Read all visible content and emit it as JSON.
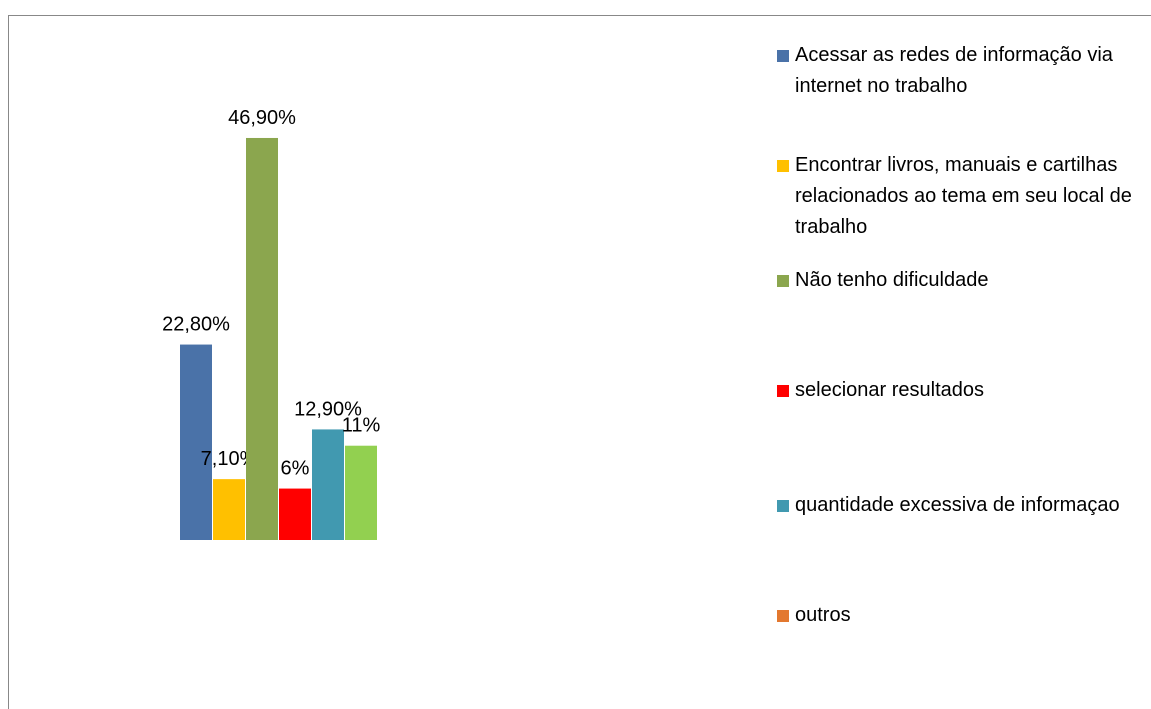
{
  "chart_data": {
    "type": "bar",
    "categories": [
      null
    ],
    "ylim": [
      0,
      50
    ],
    "series": [
      {
        "name": "Acessar as redes de informação via internet no trabalho",
        "color": "#4a72a8",
        "values": [
          22.8
        ],
        "value_labels": [
          "22,80%"
        ]
      },
      {
        "name": "Encontrar livros, manuais e cartilhas relacionados ao tema em seu local de trabalho",
        "color": "#ffc000",
        "values": [
          7.1
        ],
        "value_labels": [
          "7,10%"
        ]
      },
      {
        "name": "Não tenho dificuldade",
        "color": "#8ba64e",
        "values": [
          46.9
        ],
        "value_labels": [
          "46,90%"
        ]
      },
      {
        "name": "selecionar resultados",
        "color": "#ff0000",
        "values": [
          6
        ],
        "value_labels": [
          "6%"
        ]
      },
      {
        "name": "quantidade excessiva de informaçao",
        "color": "#4199b0",
        "values": [
          12.9
        ],
        "value_labels": [
          "12,90%"
        ]
      },
      {
        "name": "outros",
        "color": "#92d050",
        "legend_color": "#e3782f",
        "values": [
          11
        ],
        "value_labels": [
          "11%"
        ]
      }
    ]
  }
}
